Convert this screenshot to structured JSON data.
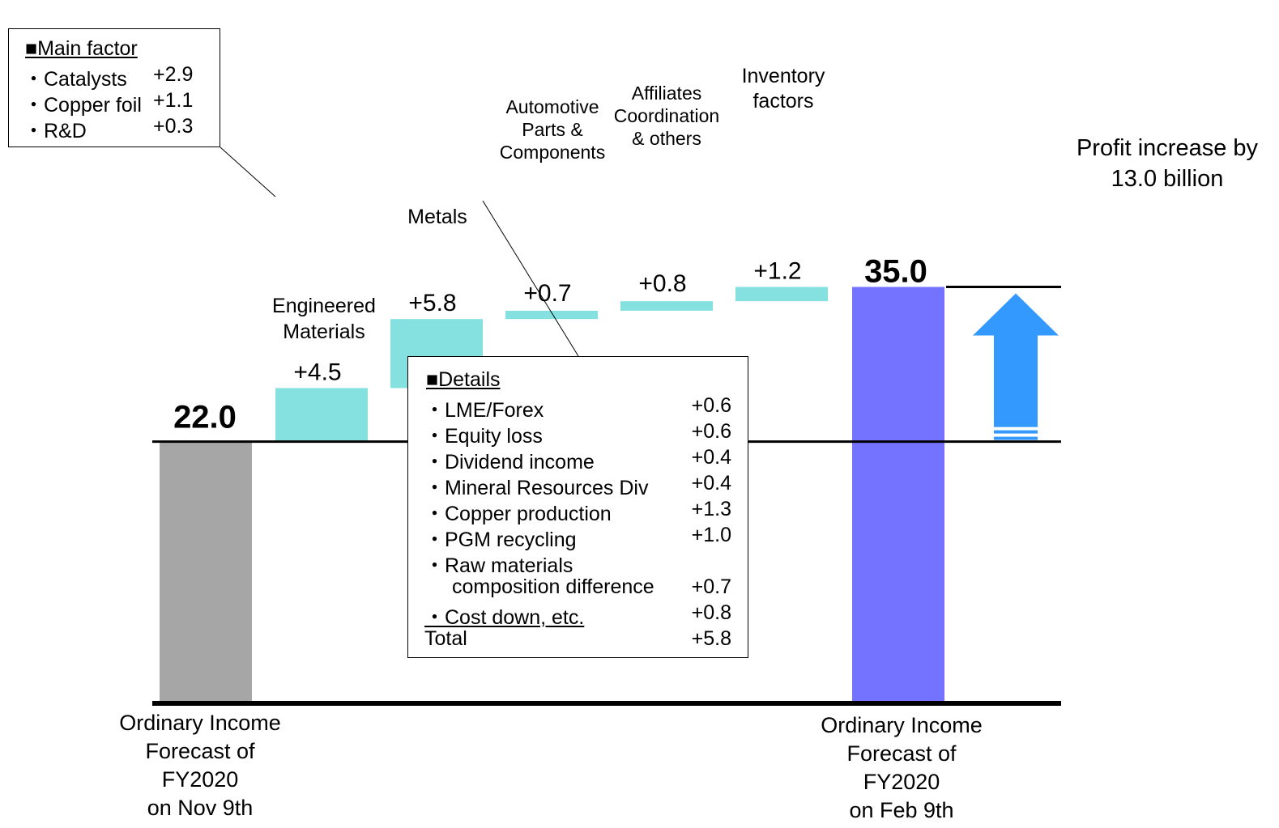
{
  "chart_data": {
    "type": "waterfall",
    "start": {
      "label": "Ordinary Income Forecast of FY2020 on Nov 9th",
      "label_lines": [
        "Ordinary Income",
        "Forecast of",
        "FY2020",
        "on Nov 9th"
      ],
      "value": 22.0,
      "value_text": "22.0",
      "color": "#a6a6a6"
    },
    "steps": [
      {
        "label_lines": [
          "Engineered",
          "Materials"
        ],
        "value": 4.5,
        "value_text": "+4.5",
        "label_pos": "below"
      },
      {
        "label_lines": [
          "Metals"
        ],
        "value": 5.8,
        "value_text": "+5.8",
        "label_pos": "below"
      },
      {
        "label_lines": [
          "Automotive",
          "Parts &",
          "Components"
        ],
        "value": 0.7,
        "value_text": "+0.7",
        "label_pos": "below"
      },
      {
        "label_lines": [
          "Affiliates",
          "Coordination",
          "& others"
        ],
        "value": 0.8,
        "value_text": "+0.8",
        "label_pos": "below"
      },
      {
        "label_lines": [
          "Inventory",
          "factors"
        ],
        "value": 1.2,
        "value_text": "+1.2",
        "label_pos": "below"
      }
    ],
    "end": {
      "label": "Ordinary Income Forecast of FY2020 on Feb 9th",
      "label_lines": [
        "Ordinary Income",
        "Forecast of",
        "FY2020",
        "on Feb 9th"
      ],
      "value": 35.0,
      "value_text": "35.0",
      "color": "#7373ff"
    },
    "step_color": "#85e0e0",
    "arrow_color": "#3399ff",
    "increase_note_lines": [
      "Profit increase by",
      "13.0 billion"
    ],
    "ylim": [
      0,
      35.0
    ]
  },
  "main_factor_box": {
    "title": "■Main factor",
    "items": [
      {
        "name": "・Catalysts",
        "value": "+2.9"
      },
      {
        "name": "・Copper foil",
        "value": "+1.1"
      },
      {
        "name": "・R&D",
        "value": "+0.3"
      }
    ]
  },
  "details_box": {
    "title": "■Details",
    "items": [
      {
        "name": "・LME/Forex",
        "value": "+0.6"
      },
      {
        "name": "・Equity loss",
        "value": "+0.6"
      },
      {
        "name": "・Dividend income",
        "value": "+0.4"
      },
      {
        "name": "・Mineral Resources Div",
        "value": "+0.4"
      },
      {
        "name": "・Copper production",
        "value": "+1.3"
      },
      {
        "name": "・PGM recycling",
        "value": "+1.0"
      },
      {
        "name": "・Raw materials",
        "value": ""
      },
      {
        "name": "composition difference",
        "value": "+0.7"
      },
      {
        "name": "・Cost down, etc.",
        "value": "+0.8"
      }
    ],
    "total_label": "Total",
    "total_value": "+5.8"
  }
}
